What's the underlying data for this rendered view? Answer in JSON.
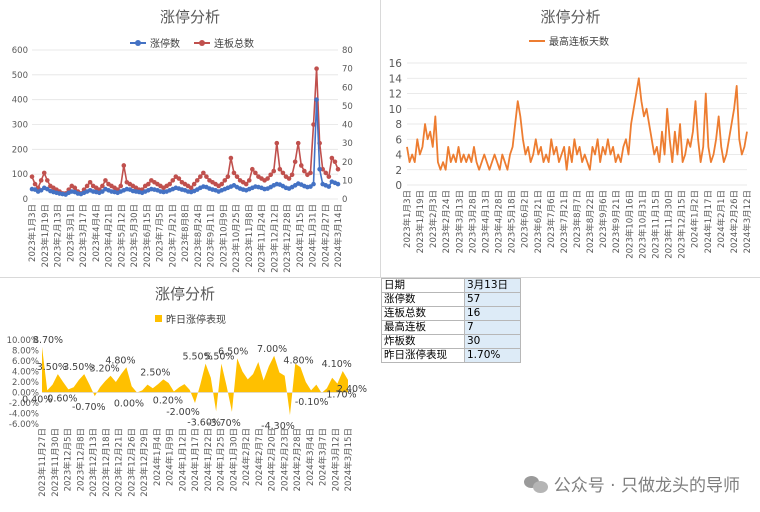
{
  "chart_data": [
    {
      "type": "line",
      "title": "涨停分析",
      "series": [
        {
          "name": "涨停数",
          "axis": "left",
          "color": "#4472c4",
          "values": [
            40,
            38,
            30,
            35,
            45,
            40,
            32,
            28,
            25,
            22,
            20,
            18,
            25,
            30,
            28,
            22,
            20,
            25,
            30,
            35,
            30,
            28,
            25,
            30,
            40,
            35,
            30,
            28,
            25,
            30,
            35,
            40,
            38,
            32,
            30,
            28,
            25,
            30,
            35,
            40,
            38,
            35,
            30,
            28,
            30,
            35,
            40,
            45,
            42,
            38,
            35,
            30,
            28,
            32,
            38,
            45,
            50,
            48,
            42,
            38,
            35,
            30,
            35,
            40,
            45,
            50,
            55,
            48,
            42,
            38,
            35,
            40,
            45,
            50,
            48,
            45,
            40,
            42,
            48,
            55,
            60,
            58,
            52,
            45,
            42,
            48,
            55,
            62,
            58,
            52,
            48,
            50,
            60,
            400,
            120,
            60,
            55,
            50,
            70,
            65,
            60
          ]
        },
        {
          "name": "连板总数",
          "axis": "right",
          "color": "#c0504d",
          "values": [
            12,
            8,
            6,
            10,
            14,
            10,
            7,
            6,
            5,
            4,
            3,
            3,
            5,
            7,
            6,
            4,
            3,
            5,
            7,
            9,
            7,
            6,
            5,
            7,
            10,
            8,
            7,
            6,
            5,
            7,
            18,
            9,
            8,
            7,
            6,
            5,
            5,
            7,
            8,
            10,
            9,
            8,
            7,
            6,
            7,
            8,
            10,
            12,
            11,
            9,
            8,
            7,
            6,
            8,
            10,
            12,
            14,
            12,
            10,
            9,
            8,
            7,
            8,
            10,
            12,
            22,
            14,
            12,
            10,
            9,
            8,
            10,
            16,
            14,
            12,
            11,
            10,
            11,
            13,
            15,
            30,
            16,
            14,
            12,
            11,
            13,
            20,
            30,
            18,
            15,
            13,
            14,
            40,
            70,
            30,
            16,
            14,
            12,
            22,
            20,
            16
          ]
        }
      ],
      "x_labels": [
        "2023年1月3日",
        "2023年1月19日",
        "2023年2月13日",
        "2023年3月1日",
        "2023年3月17日",
        "2023年4月4日",
        "2023年4月21日",
        "2023年5月12日",
        "2023年5月30日",
        "2023年6月15日",
        "2023年7月5日",
        "2023年7月21日",
        "2023年8月8日",
        "2023年8月24日",
        "2023年9月11日",
        "2023年10月9日",
        "2023年10月25日",
        "2023年11月8日",
        "2023年11月24日",
        "2023年12月12日",
        "2023年12月28日",
        "2024年1月15日",
        "2024年1月31日",
        "2024年2月27日",
        "2024年3月14日"
      ],
      "ylim_left": [
        0,
        600
      ],
      "ylim_right": [
        0,
        80
      ],
      "yticks_left": [
        "0",
        "100",
        "200",
        "300",
        "400",
        "500",
        "600"
      ],
      "yticks_right": [
        "0",
        "10",
        "20",
        "30",
        "40",
        "50",
        "60",
        "70",
        "80"
      ],
      "legend": "top"
    },
    {
      "type": "line",
      "title": "涨停分析",
      "series": [
        {
          "name": "最高连板天数",
          "color": "#ed7d31",
          "values": [
            5,
            3,
            4,
            3,
            6,
            4,
            5,
            8,
            6,
            7,
            5,
            9,
            3,
            2,
            3,
            2,
            5,
            3,
            4,
            3,
            5,
            3,
            4,
            3,
            4,
            3,
            5,
            3,
            2,
            3,
            4,
            3,
            2,
            3,
            4,
            3,
            2,
            4,
            3,
            2,
            4,
            5,
            8,
            11,
            9,
            6,
            4,
            5,
            3,
            4,
            6,
            4,
            5,
            3,
            4,
            3,
            6,
            4,
            5,
            3,
            4,
            5,
            2,
            5,
            3,
            6,
            4,
            5,
            3,
            4,
            3,
            2,
            5,
            4,
            6,
            3,
            5,
            4,
            6,
            4,
            5,
            3,
            4,
            3,
            5,
            6,
            4,
            8,
            10,
            12,
            14,
            11,
            9,
            10,
            8,
            6,
            4,
            5,
            3,
            7,
            4,
            10,
            6,
            3,
            7,
            4,
            8,
            3,
            4,
            6,
            5,
            7,
            11,
            6,
            3,
            5,
            12,
            5,
            3,
            4,
            6,
            9,
            5,
            3,
            4,
            6,
            8,
            10,
            13,
            6,
            4,
            5,
            7
          ]
        }
      ],
      "x_labels": [
        "2023年1月3日",
        "2023年1月19日",
        "2023年2月3日",
        "2023年2月24日",
        "2023年3月13日",
        "2023年3月28日",
        "2023年4月13日",
        "2023年4月28日",
        "2023年5月18日",
        "2023年6月2日",
        "2023年6月21日",
        "2023年7月6日",
        "2023年7月21日",
        "2023年8月7日",
        "2023年8月22日",
        "2023年9月6日",
        "2023年9月21日",
        "2023年10月16日",
        "2023年10月31日",
        "2023年11月15日",
        "2023年11月30日",
        "2023年12月15日",
        "2024年1月2日",
        "2024年1月17日",
        "2024年2月1日",
        "2024年2月26日",
        "2024年3月12日"
      ],
      "ylim": [
        0,
        16
      ],
      "yticks": [
        "0",
        "2",
        "4",
        "6",
        "8",
        "10",
        "12",
        "14",
        "16"
      ],
      "legend": "top"
    },
    {
      "type": "area",
      "title": "涨停分析",
      "series": [
        {
          "name": "昨日涨停表现",
          "color": "#ffc000",
          "values": [
            8.7,
            0.4,
            1.5,
            3.5,
            2.0,
            0.6,
            1.0,
            2.4,
            3.5,
            1.5,
            -0.7,
            1.0,
            2.2,
            3.2,
            2.0,
            3.5,
            4.8,
            1.2,
            0.0,
            0.4,
            1.5,
            0.8,
            1.6,
            2.5,
            1.8,
            0.2,
            1.0,
            1.6,
            0.5,
            -2.0,
            1.5,
            5.5,
            2.8,
            -3.6,
            5.5,
            1.2,
            -3.7,
            6.5,
            4.0,
            2.5,
            3.5,
            5.8,
            2.3,
            5.0,
            7.0,
            3.8,
            3.2,
            -4.3,
            5.5,
            4.8,
            2.0,
            0.4,
            1.5,
            -0.1,
            0.8,
            2.8,
            1.7,
            4.1,
            2.4
          ]
        }
      ],
      "data_labels": [
        "8.70%",
        "3.50%",
        "3.50%",
        "4.80%",
        "3.20%",
        "2.50%",
        "5.50%",
        "5.50%",
        "6.50%",
        "7.00%",
        "4.80%",
        "4.10%",
        "2.40%",
        "1.70%",
        "0.40%",
        "0.60%",
        "-0.70%",
        "0.00%",
        "0.20%",
        "-2.00%",
        "-3.60%",
        "-3.70%",
        "-4.30%",
        "-0.10%"
      ],
      "x_labels": [
        "2023年11月27日",
        "2023年11月30日",
        "2023年12月5日",
        "2023年12月8日",
        "2023年12月13日",
        "2023年12月18日",
        "2023年12月21日",
        "2023年12月26日",
        "2023年12月29日",
        "2024年1月4日",
        "2024年1月9日",
        "2024年1月12日",
        "2024年1月17日",
        "2024年1月22日",
        "2024年1月25日",
        "2024年1月30日",
        "2024年2月2日",
        "2024年2月7日",
        "2024年2月20日",
        "2024年2月23日",
        "2024年2月28日",
        "2024年3月4日",
        "2024年3月7日",
        "2024年3月12日",
        "2024年3月15日"
      ],
      "ylim": [
        -6,
        10
      ],
      "yticks": [
        "10.00%",
        "8.00%",
        "6.00%",
        "4.00%",
        "2.00%",
        "0.00%",
        "-2.00%",
        "-4.00%",
        "-6.00%"
      ],
      "legend": "top-left"
    }
  ],
  "table": {
    "header": [
      "日期",
      "3月13日"
    ],
    "rows": [
      [
        "涨停数",
        "57"
      ],
      [
        "连板总数",
        "16"
      ],
      [
        "最高连板",
        "7"
      ],
      [
        "炸板数",
        "30"
      ],
      [
        "昨日涨停表现",
        "1.70%"
      ]
    ]
  },
  "watermark": {
    "text": "公众号 · 只做龙头的导师",
    "icon": "wechat-icon"
  }
}
